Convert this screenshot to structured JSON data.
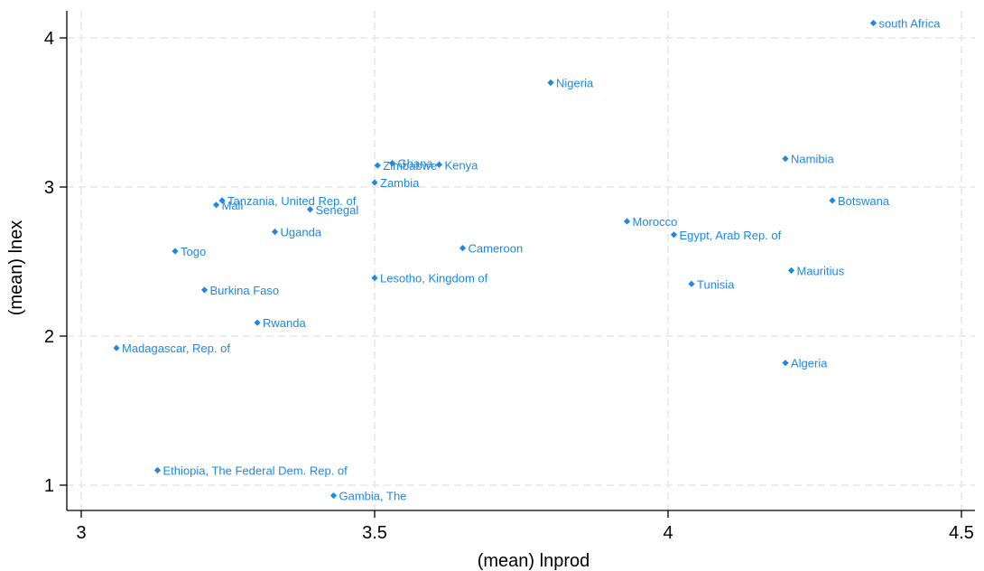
{
  "chart_data": {
    "type": "scatter",
    "title": "",
    "xlabel": "(mean) lnprod",
    "ylabel": "(mean) lnex",
    "xlim": [
      2.98,
      4.52
    ],
    "ylim": [
      0.85,
      4.2
    ],
    "xticks": [
      3,
      3.5,
      4,
      4.5
    ],
    "yticks": [
      1,
      2,
      3,
      4
    ],
    "x_tick_labels": [
      "3",
      "3.5",
      "4",
      "4.5"
    ],
    "y_tick_labels": [
      "1",
      "2",
      "3",
      "4"
    ],
    "grid": true,
    "marker_color": "#1e88e5",
    "points": [
      {
        "label": "south Africa",
        "x": 4.35,
        "y": 4.1
      },
      {
        "label": "Nigeria",
        "x": 3.8,
        "y": 3.7
      },
      {
        "label": "Namibia",
        "x": 4.2,
        "y": 3.19
      },
      {
        "label": "Ghana",
        "x": 3.53,
        "y": 3.16
      },
      {
        "label": "Kenya",
        "x": 3.61,
        "y": 3.15
      },
      {
        "label": "Zimbabwe",
        "x": 3.505,
        "y": 3.145
      },
      {
        "label": "Zambia",
        "x": 3.5,
        "y": 3.03
      },
      {
        "label": "Botswana",
        "x": 4.28,
        "y": 2.91
      },
      {
        "label": "Tanzania, United Rep. of",
        "x": 3.24,
        "y": 2.91
      },
      {
        "label": "Mali",
        "x": 3.23,
        "y": 2.88
      },
      {
        "label": "Senegal",
        "x": 3.39,
        "y": 2.85
      },
      {
        "label": "Morocco",
        "x": 3.93,
        "y": 2.77
      },
      {
        "label": "Uganda",
        "x": 3.33,
        "y": 2.7
      },
      {
        "label": "Egypt, Arab Rep. of",
        "x": 4.01,
        "y": 2.68
      },
      {
        "label": "Cameroon",
        "x": 3.65,
        "y": 2.59
      },
      {
        "label": "Togo",
        "x": 3.16,
        "y": 2.57
      },
      {
        "label": "Mauritius",
        "x": 4.21,
        "y": 2.44
      },
      {
        "label": "Lesotho, Kingdom of",
        "x": 3.5,
        "y": 2.39
      },
      {
        "label": "Tunisia",
        "x": 4.04,
        "y": 2.35
      },
      {
        "label": "Burkina Faso",
        "x": 3.21,
        "y": 2.31
      },
      {
        "label": "Rwanda",
        "x": 3.3,
        "y": 2.09
      },
      {
        "label": "Madagascar, Rep. of",
        "x": 3.06,
        "y": 1.92
      },
      {
        "label": "Algeria",
        "x": 4.2,
        "y": 1.82
      },
      {
        "label": "Ethiopia, The Federal Dem. Rep. of",
        "x": 3.13,
        "y": 1.1
      },
      {
        "label": "Gambia, The",
        "x": 3.43,
        "y": 0.93
      }
    ]
  }
}
